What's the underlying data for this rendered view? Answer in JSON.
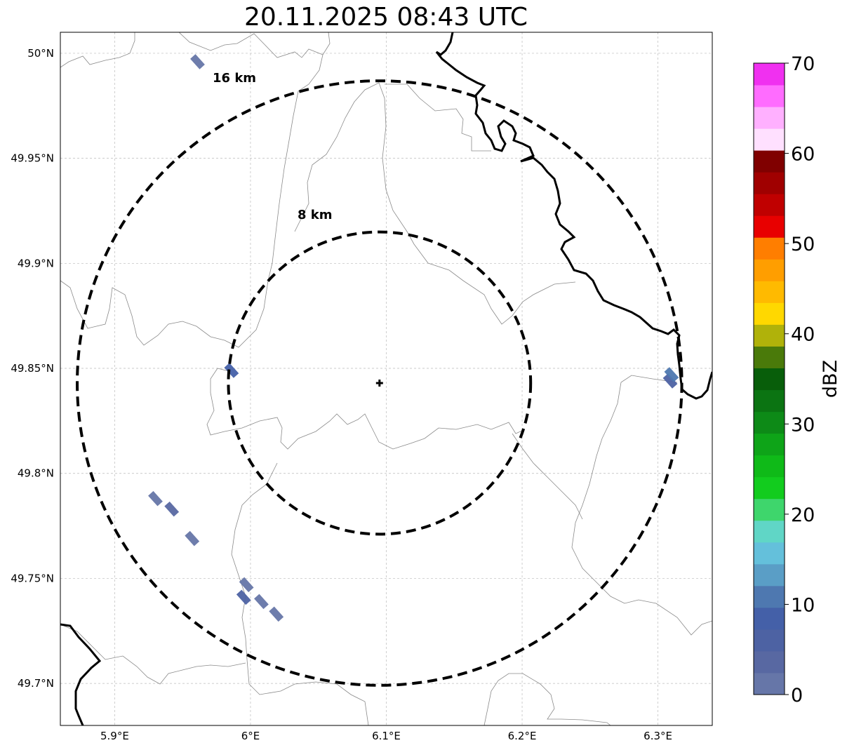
{
  "title": "20.11.2025 08:43 UTC",
  "map": {
    "lon_range": [
      5.86,
      6.34
    ],
    "lat_range": [
      49.68,
      50.01
    ],
    "lon_ticks": [
      {
        "value": 5.9,
        "label": "5.9°E"
      },
      {
        "value": 6.0,
        "label": "6°E"
      },
      {
        "value": 6.1,
        "label": "6.1°E"
      },
      {
        "value": 6.2,
        "label": "6.2°E"
      },
      {
        "value": 6.3,
        "label": "6.3°E"
      }
    ],
    "lat_ticks": [
      {
        "value": 49.7,
        "label": "49.7°N"
      },
      {
        "value": 49.75,
        "label": "49.75°N"
      },
      {
        "value": 49.8,
        "label": "49.8°N"
      },
      {
        "value": 49.85,
        "label": "49.85°N"
      },
      {
        "value": 49.9,
        "label": "49.9°N"
      },
      {
        "value": 49.95,
        "label": "49.95°N"
      },
      {
        "value": 50.0,
        "label": "50°N"
      }
    ],
    "gridlines": true,
    "radar_site": {
      "lon": 6.095,
      "lat": 49.843,
      "marker": "plus"
    },
    "range_rings": [
      {
        "radius_km": 8,
        "label": "8 km"
      },
      {
        "radius_km": 16,
        "label": "16 km"
      }
    ],
    "echoes": [
      {
        "lon": 5.961,
        "lat": 49.996,
        "dbz": 2
      },
      {
        "lon": 5.986,
        "lat": 49.849,
        "dbz": 9
      },
      {
        "lon": 5.93,
        "lat": 49.788,
        "dbz": 1
      },
      {
        "lon": 5.942,
        "lat": 49.783,
        "dbz": 3
      },
      {
        "lon": 5.957,
        "lat": 49.769,
        "dbz": 1
      },
      {
        "lon": 5.997,
        "lat": 49.747,
        "dbz": 2
      },
      {
        "lon": 5.995,
        "lat": 49.741,
        "dbz": 6
      },
      {
        "lon": 6.008,
        "lat": 49.739,
        "dbz": 2
      },
      {
        "lon": 6.019,
        "lat": 49.733,
        "dbz": 1
      },
      {
        "lon": 6.309,
        "lat": 49.844,
        "dbz": 7
      },
      {
        "lon": 6.31,
        "lat": 49.847,
        "dbz": 12
      }
    ]
  },
  "colorbar": {
    "label": "dBZ",
    "vmin": 0,
    "vmax": 70,
    "tick_values": [
      0,
      10,
      20,
      30,
      40,
      50,
      60,
      70
    ],
    "tick_labels": [
      "0",
      "10",
      "20",
      "30",
      "40",
      "50",
      "60",
      "70"
    ],
    "colors": [
      "#6676a8",
      "#5868a2",
      "#4d62a3",
      "#4460a8",
      "#4e78b0",
      "#5a9ec6",
      "#64c0db",
      "#60d6c6",
      "#3ed66c",
      "#12cc1e",
      "#0fba18",
      "#0ea418",
      "#0d8a17",
      "#0b7412",
      "#085e0a",
      "#4a7a0a",
      "#b0b20a",
      "#ffd800",
      "#ffba00",
      "#ff9e00",
      "#ff7e00",
      "#e80000",
      "#c00000",
      "#a00000",
      "#800000",
      "#ffe0ff",
      "#ffb0ff",
      "#ff6cff",
      "#f030f0"
    ]
  }
}
